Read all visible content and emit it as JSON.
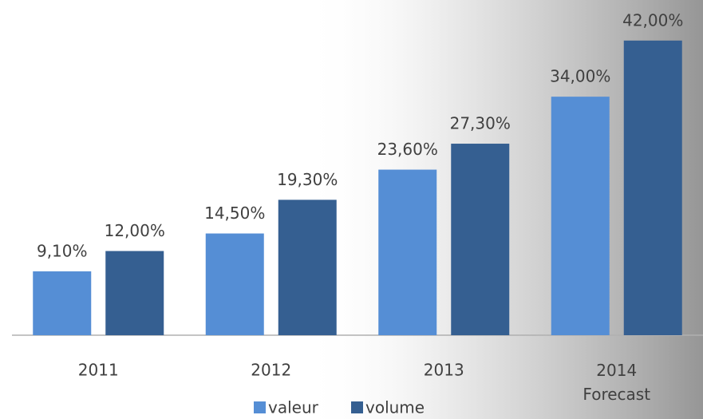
{
  "chart_data": {
    "type": "bar",
    "categories": [
      "2011",
      "2012",
      "2013",
      "2014\nForecast"
    ],
    "series": [
      {
        "name": "valeur",
        "color": "#558ed5",
        "values": [
          9.1,
          14.5,
          23.6,
          34.0
        ],
        "value_labels": [
          "9,10%",
          "14,50%",
          "23,60%",
          "34,00%"
        ]
      },
      {
        "name": "volume",
        "color": "#355f91",
        "values": [
          12.0,
          19.3,
          27.3,
          42.0
        ],
        "value_labels": [
          "12,00%",
          "19,30%",
          "27,30%",
          "42,00%"
        ]
      }
    ]
  }
}
